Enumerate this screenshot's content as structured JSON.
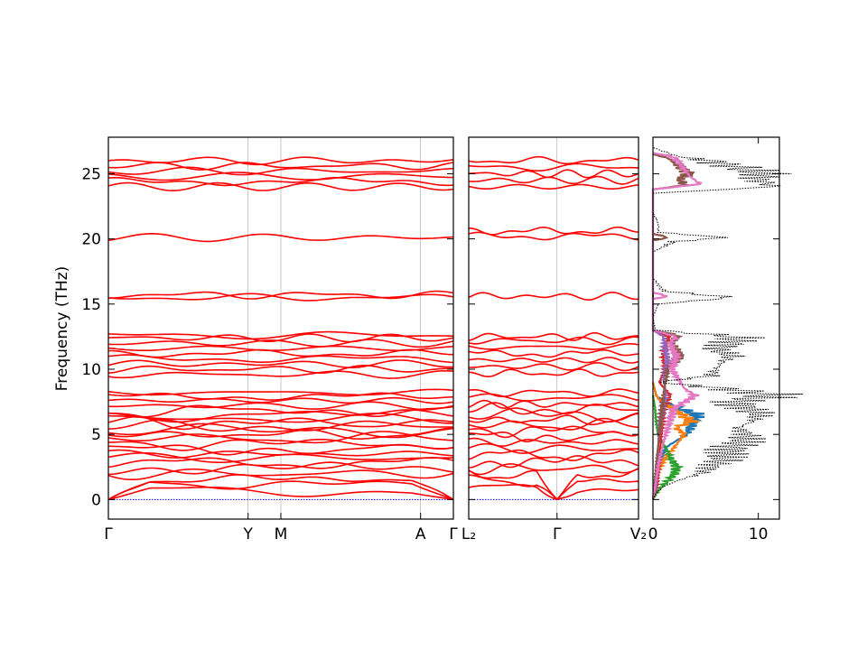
{
  "colors": {
    "band": "#ff0000",
    "zero_line": "#0000ff",
    "total_dos": "#000000",
    "pdos": [
      "#1f77b4",
      "#ff7f0e",
      "#2ca02c",
      "#d62728",
      "#9467bd",
      "#8c564b",
      "#e377c2"
    ]
  },
  "chart_data": [
    {
      "type": "line",
      "title": "",
      "xlabel": "",
      "ylabel": "Frequency (THz)",
      "ylim": [
        -1.5,
        27.8
      ],
      "yticks": [
        "0",
        "5",
        "10",
        "15",
        "20",
        "25"
      ],
      "xlim": [
        0,
        1
      ],
      "xticks": [
        {
          "label": "Γ",
          "pos": 0.0
        },
        {
          "label": "Y",
          "pos": 0.405
        },
        {
          "label": "M",
          "pos": 0.5
        },
        {
          "label": "A",
          "pos": 0.905
        },
        {
          "label": "Γ",
          "pos": 1.0
        }
      ],
      "band_levels": [
        0.6,
        1.2,
        1.6,
        2.0,
        2.4,
        2.8,
        3.2,
        3.5,
        3.9,
        4.3,
        4.7,
        5.0,
        5.3,
        5.6,
        5.9,
        6.2,
        6.5,
        6.8,
        7.2,
        7.6,
        7.9,
        8.2,
        9.6,
        10.0,
        10.4,
        10.8,
        11.2,
        11.6,
        12.0,
        12.4,
        12.6,
        15.5,
        15.7,
        20.1,
        24.0,
        24.4,
        24.8,
        25.2,
        25.6,
        26.0
      ]
    },
    {
      "type": "line",
      "ylim": [
        -1.5,
        27.8
      ],
      "xlim": [
        0,
        1
      ],
      "xticks": [
        {
          "label": "L₂",
          "pos": 0.0
        },
        {
          "label": "Γ",
          "pos": 0.52
        },
        {
          "label": "V₂",
          "pos": 1.0
        }
      ],
      "band_levels": [
        0.8,
        1.4,
        1.9,
        2.4,
        2.9,
        3.4,
        3.9,
        4.4,
        4.9,
        5.3,
        5.7,
        6.1,
        6.5,
        6.9,
        7.3,
        7.8,
        8.2,
        9.7,
        10.2,
        10.7,
        11.2,
        11.7,
        12.2,
        12.5,
        15.6,
        20.2,
        20.6,
        24.0,
        24.5,
        25.0,
        25.5,
        26.0
      ]
    },
    {
      "type": "area",
      "xlabel": "",
      "xlim": [
        0,
        12
      ],
      "xticks": [
        "0",
        "10"
      ],
      "ylim": [
        -1.5,
        27.8
      ],
      "total_dos": {
        "freq": [
          0.0,
          0.5,
          1.0,
          1.5,
          2.0,
          2.5,
          3.0,
          3.5,
          4.0,
          4.5,
          5.0,
          5.5,
          6.0,
          6.5,
          7.0,
          7.5,
          8.0,
          8.5,
          9.0,
          9.5,
          10.0,
          10.5,
          11.0,
          11.5,
          12.0,
          12.5,
          13.0,
          14.0,
          15.0,
          15.5,
          16.0,
          17.0,
          19.0,
          19.8,
          20.1,
          20.5,
          21.2,
          22.0,
          23.5,
          24.0,
          24.5,
          25.0,
          25.5,
          26.0,
          26.3,
          27.0
        ],
        "dos": [
          0.0,
          0.3,
          1.0,
          2.5,
          4.5,
          5.5,
          6.5,
          7.0,
          7.5,
          8.5,
          9.0,
          8.0,
          9.5,
          10.0,
          9.0,
          7.5,
          11.5,
          7.0,
          0.5,
          5.5,
          6.0,
          6.5,
          7.5,
          6.0,
          7.5,
          8.0,
          0.2,
          0.0,
          0.5,
          7.5,
          1.0,
          0.0,
          0.0,
          2.0,
          7.0,
          0.5,
          0.5,
          0.0,
          0.0,
          11.5,
          10.0,
          10.5,
          8.0,
          5.5,
          2.5,
          0.0
        ]
      },
      "pdos": [
        {
          "freq": [
            0,
            2,
            3,
            4,
            5,
            6,
            6.5,
            7,
            7.5,
            8,
            9
          ],
          "dos": [
            0,
            0.3,
            0.8,
            1.2,
            3.2,
            3.8,
            4.2,
            2.5,
            1.0,
            0.3,
            0
          ]
        },
        {
          "freq": [
            0,
            2,
            3,
            4,
            5,
            5.5,
            6,
            6.5,
            7,
            7.5,
            8,
            9
          ],
          "dos": [
            0,
            0.4,
            1.0,
            2.0,
            3.0,
            2.2,
            3.6,
            2.8,
            1.8,
            0.8,
            0.3,
            0
          ]
        },
        {
          "freq": [
            0,
            0.8,
            1.5,
            2,
            2.5,
            3,
            3.5,
            4,
            4.5,
            5,
            6,
            7,
            8
          ],
          "dos": [
            0,
            0.6,
            1.5,
            2.0,
            2.3,
            1.8,
            1.5,
            1.2,
            0.8,
            0.5,
            0.3,
            0.2,
            0
          ]
        },
        {
          "freq": [
            0,
            1,
            3,
            5,
            7,
            8,
            9,
            10,
            11,
            12,
            12.5,
            13
          ],
          "dos": [
            0,
            0.4,
            0.6,
            0.8,
            1.0,
            1.6,
            0.6,
            1.2,
            1.0,
            1.3,
            1.5,
            0
          ]
        },
        {
          "freq": [
            0,
            1,
            4,
            6,
            8,
            9.5,
            10.5,
            11.5,
            12.5,
            13
          ],
          "dos": [
            0,
            0.3,
            0.5,
            0.7,
            1.2,
            1.0,
            1.4,
            1.2,
            1.0,
            0
          ]
        },
        {
          "freq": [
            0,
            5,
            8,
            10,
            11,
            12,
            12.6,
            13,
            19.9,
            20.1,
            20.4,
            23.8,
            24.1,
            24.6,
            25.0,
            25.6,
            26.1,
            26.5
          ],
          "dos": [
            0,
            0.6,
            1.0,
            1.4,
            2.6,
            1.8,
            2.4,
            0,
            0,
            1.5,
            0,
            0,
            3.0,
            2.5,
            3.5,
            2.5,
            1.8,
            0
          ]
        },
        {
          "freq": [
            0,
            3,
            5,
            7,
            8,
            8.5,
            10,
            11,
            12,
            12.5,
            13,
            15.4,
            15.6,
            15.9,
            23.8,
            24.2,
            24.8,
            25.3,
            25.8,
            26.3,
            26.6
          ],
          "dos": [
            0,
            0.6,
            1.2,
            2.0,
            4.0,
            3.0,
            1.8,
            2.2,
            1.6,
            2.2,
            0,
            0,
            1.4,
            0,
            0,
            4.5,
            3.5,
            3.0,
            2.5,
            2.0,
            0
          ]
        }
      ]
    }
  ]
}
